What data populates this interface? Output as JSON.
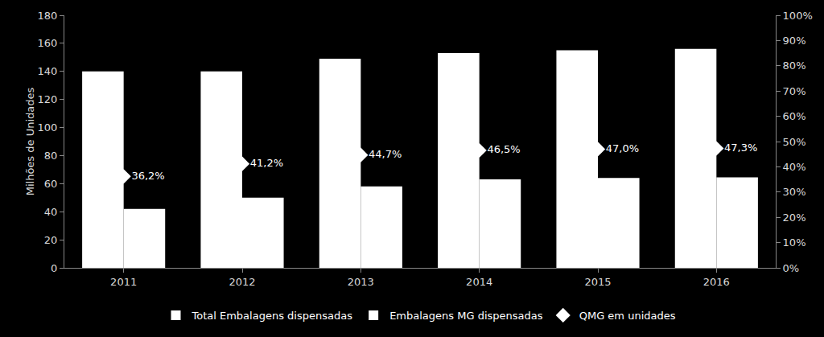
{
  "chart_data": {
    "type": "bar",
    "y_label": "Milhões de Unidades",
    "categories": [
      "2011",
      "2012",
      "2013",
      "2014",
      "2015",
      "2016"
    ],
    "series": [
      {
        "name": "Total Embalagens dispensadas",
        "type": "bar",
        "color": "#ffffff",
        "values": [
          140,
          140,
          149,
          153,
          155,
          156
        ]
      },
      {
        "name": "Embalagens MG dispensadas",
        "type": "bar",
        "color": "#ffffff",
        "values": [
          42,
          50,
          58,
          63,
          64,
          64.5
        ]
      },
      {
        "name": "QMG em unidades",
        "type": "scatter",
        "axis": "y2",
        "color": "#ffffff",
        "marker": "diamond",
        "data_labels": true,
        "values": [
          36.2,
          41.2,
          44.7,
          46.5,
          47.0,
          47.3
        ],
        "value_labels": [
          "36,2%",
          "41,2%",
          "44,7%",
          "46,5%",
          "47,0%",
          "47,3%"
        ]
      }
    ],
    "ylim": [
      0,
      180
    ],
    "yticks": [
      0,
      20,
      40,
      60,
      80,
      100,
      120,
      140,
      160,
      180
    ],
    "y2lim": [
      0,
      100
    ],
    "y2ticks": [
      {
        "value": 0,
        "label": "0%"
      },
      {
        "value": 10,
        "label": "10%"
      },
      {
        "value": 20,
        "label": "20%"
      },
      {
        "value": 30,
        "label": "30%"
      },
      {
        "value": 40,
        "label": "40%"
      },
      {
        "value": 50,
        "label": "50%"
      },
      {
        "value": 60,
        "label": "60%"
      },
      {
        "value": 70,
        "label": "70%"
      },
      {
        "value": 80,
        "label": "80%"
      },
      {
        "value": 90,
        "label": "90%"
      },
      {
        "value": 100,
        "label": "100%"
      }
    ],
    "grid": false,
    "legend": "bottom"
  }
}
